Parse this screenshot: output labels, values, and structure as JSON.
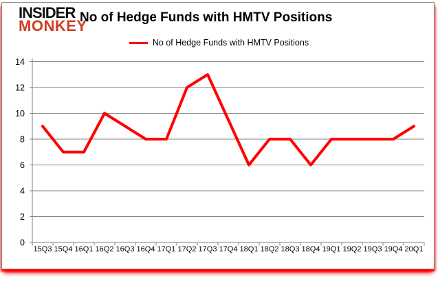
{
  "brand": {
    "line1": "INSIDER",
    "line2": "MONKEY"
  },
  "header": {
    "title": "No of Hedge Funds with HMTV Positions"
  },
  "legend": {
    "label": "No of Hedge Funds with HMTV Positions"
  },
  "colors": {
    "series_line": "#ff0000",
    "grid": "#808080",
    "axis": "#808080",
    "text": "#000000",
    "brand_red": "#cf3e26",
    "frame_border": "#909090",
    "frame_glow": "#ff0000",
    "background": "#ffffff"
  },
  "chart_data": {
    "type": "line",
    "title": "No of Hedge Funds with HMTV Positions",
    "xlabel": "",
    "ylabel": "",
    "categories": [
      "15Q3",
      "15Q4",
      "16Q1",
      "16Q2",
      "16Q3",
      "16Q4",
      "17Q1",
      "17Q2",
      "17Q3",
      "17Q4",
      "18Q1",
      "18Q2",
      "18Q3",
      "18Q4",
      "19Q1",
      "19Q2",
      "19Q3",
      "19Q4",
      "20Q1"
    ],
    "series": [
      {
        "name": "No of Hedge Funds with HMTV Positions",
        "color": "#ff0000",
        "values": [
          9,
          7,
          7,
          10,
          9,
          8,
          8,
          12,
          13,
          9.5,
          6,
          8,
          8,
          6,
          8,
          8,
          8,
          8,
          9
        ]
      }
    ],
    "ylim": [
      0,
      14
    ],
    "yticks": [
      0,
      2,
      4,
      6,
      8,
      10,
      12,
      14
    ],
    "grid": true,
    "legend_position": "top-center",
    "marker": "none"
  }
}
